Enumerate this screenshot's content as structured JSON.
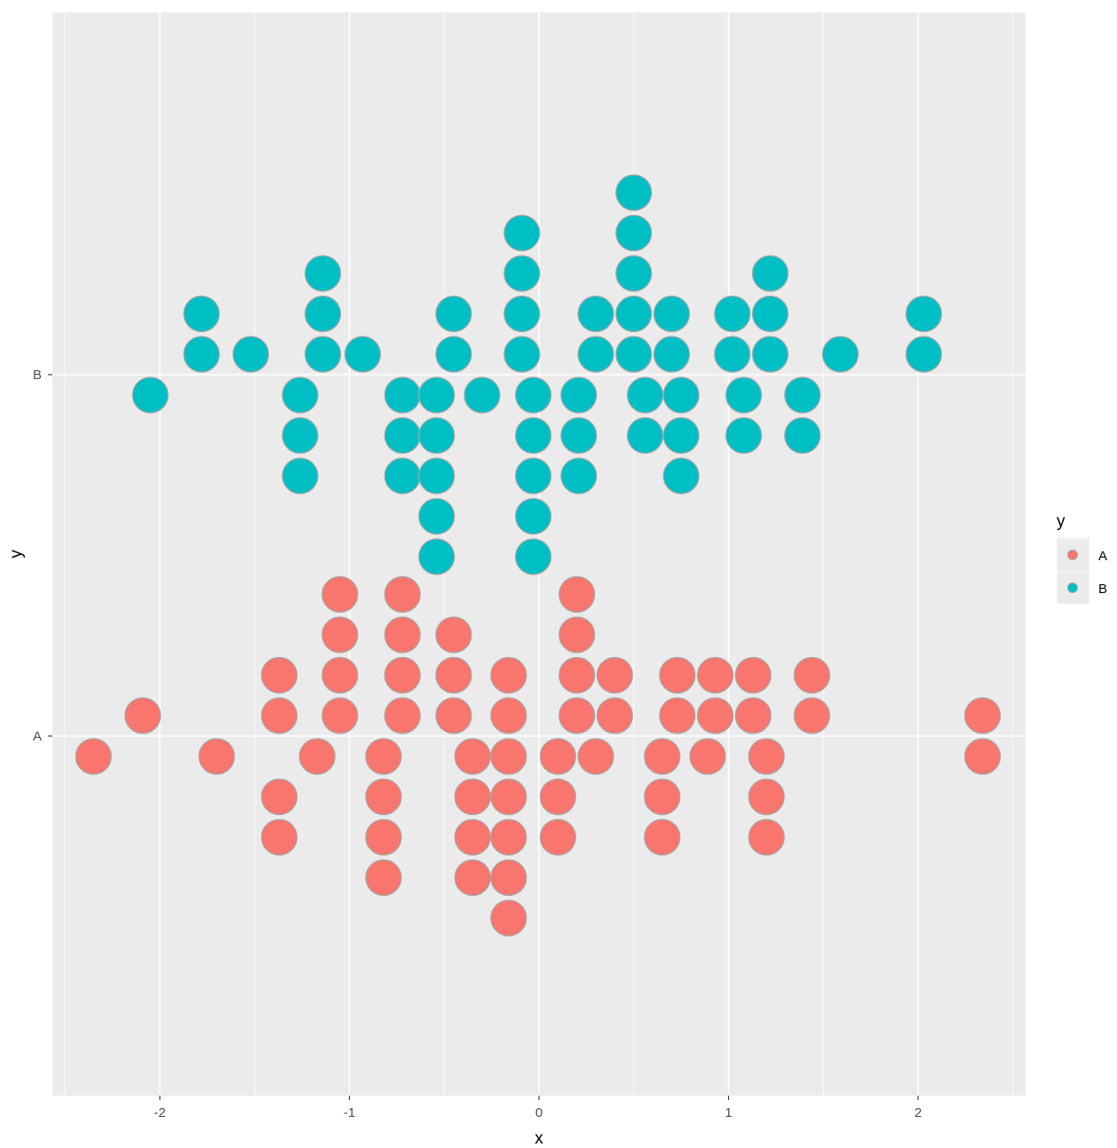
{
  "chart_data": {
    "type": "dotplot",
    "xlabel": "x",
    "ylabel": "y",
    "xlim": [
      -2.55,
      2.55
    ],
    "x_ticks": [
      "-2",
      "-1",
      "0",
      "1",
      "2"
    ],
    "y_categories": [
      "A",
      "B"
    ],
    "grid": true,
    "legend_placement": "right",
    "legend": {
      "title": "y",
      "entries": [
        {
          "label": "A",
          "color": "#F8766D"
        },
        {
          "label": "B",
          "color": "#00BFC4"
        }
      ]
    },
    "colors": {
      "panel": "#EBEBEB",
      "grid_major": "#FFFFFF",
      "dot_stroke": "#A6A6A6"
    },
    "series": [
      {
        "name": "A",
        "color": "#F8766D",
        "stacks": [
          {
            "x": -2.35,
            "n": 1,
            "start": -1
          },
          {
            "x": -2.09,
            "n": 1,
            "start": 0
          },
          {
            "x": -1.7,
            "n": 1,
            "start": -1
          },
          {
            "x": -1.37,
            "n": 2,
            "start": 0
          },
          {
            "x": -1.37,
            "n": 2,
            "start": -2,
            "dir": -1
          },
          {
            "x": -1.17,
            "n": 1,
            "start": -1
          },
          {
            "x": -1.05,
            "n": 4,
            "start": 0
          },
          {
            "x": -0.82,
            "n": 4,
            "start": -1,
            "dir": -1
          },
          {
            "x": -0.72,
            "n": 4,
            "start": 0
          },
          {
            "x": -0.45,
            "n": 3,
            "start": 0
          },
          {
            "x": -0.35,
            "n": 4,
            "start": -1,
            "dir": -1
          },
          {
            "x": -0.16,
            "n": 2,
            "start": 0
          },
          {
            "x": -0.16,
            "n": 5,
            "start": -1,
            "dir": -1
          },
          {
            "x": 0.1,
            "n": 3,
            "start": -1,
            "dir": -1
          },
          {
            "x": 0.2,
            "n": 4,
            "start": 0
          },
          {
            "x": 0.3,
            "n": 1,
            "start": -1
          },
          {
            "x": 0.4,
            "n": 2,
            "start": 0
          },
          {
            "x": 0.65,
            "n": 3,
            "start": -1,
            "dir": -1
          },
          {
            "x": 0.73,
            "n": 2,
            "start": 0
          },
          {
            "x": 0.89,
            "n": 1,
            "start": -1
          },
          {
            "x": 0.93,
            "n": 2,
            "start": 0
          },
          {
            "x": 1.13,
            "n": 2,
            "start": 0
          },
          {
            "x": 1.2,
            "n": 3,
            "start": -1,
            "dir": -1
          },
          {
            "x": 1.44,
            "n": 2,
            "start": 0
          },
          {
            "x": 2.34,
            "n": 1,
            "start": 0
          },
          {
            "x": 2.34,
            "n": 1,
            "start": -1
          }
        ]
      },
      {
        "name": "B",
        "color": "#00BFC4",
        "stacks": [
          {
            "x": -2.05,
            "n": 1,
            "start": -1
          },
          {
            "x": -1.78,
            "n": 2,
            "start": 0
          },
          {
            "x": -1.52,
            "n": 1,
            "start": 0
          },
          {
            "x": -1.26,
            "n": 3,
            "start": -1,
            "dir": -1
          },
          {
            "x": -1.14,
            "n": 3,
            "start": 0
          },
          {
            "x": -0.93,
            "n": 1,
            "start": 0
          },
          {
            "x": -0.72,
            "n": 3,
            "start": -1,
            "dir": -1
          },
          {
            "x": -0.54,
            "n": 5,
            "start": -1,
            "dir": -1
          },
          {
            "x": -0.45,
            "n": 2,
            "start": 0
          },
          {
            "x": -0.3,
            "n": 1,
            "start": -1
          },
          {
            "x": -0.09,
            "n": 4,
            "start": 0
          },
          {
            "x": -0.03,
            "n": 5,
            "start": -1,
            "dir": -1
          },
          {
            "x": 0.21,
            "n": 3,
            "start": -1,
            "dir": -1
          },
          {
            "x": 0.3,
            "n": 2,
            "start": 0
          },
          {
            "x": 0.5,
            "n": 5,
            "start": 0
          },
          {
            "x": 0.56,
            "n": 2,
            "start": -1,
            "dir": -1
          },
          {
            "x": 0.7,
            "n": 2,
            "start": 0
          },
          {
            "x": 0.75,
            "n": 3,
            "start": -1,
            "dir": -1
          },
          {
            "x": 1.02,
            "n": 2,
            "start": 0
          },
          {
            "x": 1.08,
            "n": 2,
            "start": -1,
            "dir": -1
          },
          {
            "x": 1.22,
            "n": 3,
            "start": 0
          },
          {
            "x": 1.39,
            "n": 2,
            "start": -1,
            "dir": -1
          },
          {
            "x": 1.59,
            "n": 1,
            "start": 0
          },
          {
            "x": 2.03,
            "n": 2,
            "start": 0
          }
        ]
      }
    ]
  }
}
